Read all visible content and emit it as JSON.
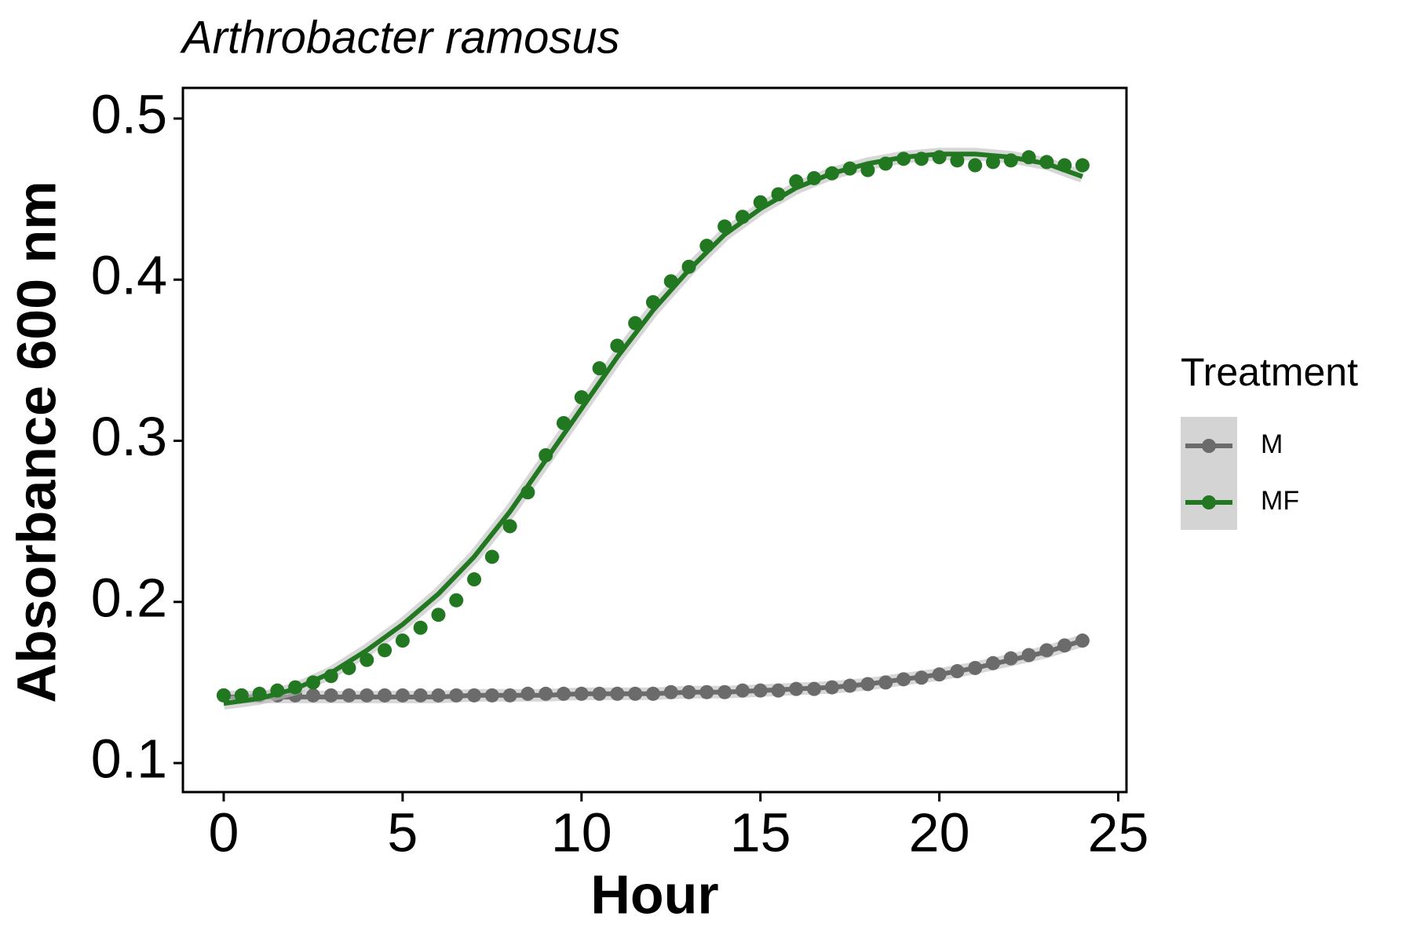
{
  "chart_data": {
    "type": "scatter",
    "title": "Arthrobacter ramosus",
    "x_label": "Hour",
    "y_label": "Absorbance 600 nm",
    "legend_title": "Treatment",
    "x": [
      0,
      0.5,
      1,
      1.5,
      2,
      2.5,
      3,
      3.5,
      4,
      4.5,
      5,
      5.5,
      6,
      6.5,
      7,
      7.5,
      8,
      8.5,
      9,
      9.5,
      10,
      10.5,
      11,
      11.5,
      12,
      12.5,
      13,
      13.5,
      14,
      14.5,
      15,
      15.5,
      16,
      16.5,
      17,
      17.5,
      18,
      18.5,
      19,
      19.5,
      20,
      20.5,
      21,
      21.5,
      22,
      22.5,
      23,
      23.5,
      24
    ],
    "fit_x": [
      0,
      1,
      2,
      3,
      4,
      5,
      6,
      7,
      8,
      9,
      10,
      11,
      12,
      13,
      14,
      15,
      16,
      17,
      18,
      19,
      20,
      21,
      22,
      23,
      24
    ],
    "series": [
      {
        "name": "M",
        "color": "#6b6b6b",
        "values": [
          0.142,
          0.142,
          0.142,
          0.142,
          0.142,
          0.142,
          0.142,
          0.142,
          0.142,
          0.142,
          0.142,
          0.142,
          0.142,
          0.142,
          0.142,
          0.142,
          0.142,
          0.143,
          0.143,
          0.143,
          0.143,
          0.143,
          0.143,
          0.143,
          0.143,
          0.144,
          0.144,
          0.144,
          0.144,
          0.145,
          0.145,
          0.145,
          0.146,
          0.146,
          0.147,
          0.148,
          0.149,
          0.15,
          0.152,
          0.153,
          0.155,
          0.157,
          0.159,
          0.162,
          0.165,
          0.167,
          0.17,
          0.173,
          0.176
        ],
        "fit": [
          0.141,
          0.141,
          0.141,
          0.141,
          0.141,
          0.141,
          0.141,
          0.142,
          0.142,
          0.142,
          0.143,
          0.143,
          0.143,
          0.144,
          0.144,
          0.145,
          0.146,
          0.147,
          0.149,
          0.152,
          0.155,
          0.159,
          0.164,
          0.169,
          0.176
        ]
      },
      {
        "name": "MF",
        "color": "#217821",
        "values": [
          0.142,
          0.142,
          0.143,
          0.145,
          0.147,
          0.15,
          0.154,
          0.159,
          0.164,
          0.17,
          0.176,
          0.184,
          0.192,
          0.201,
          0.214,
          0.228,
          0.247,
          0.268,
          0.291,
          0.311,
          0.327,
          0.345,
          0.359,
          0.373,
          0.386,
          0.399,
          0.408,
          0.421,
          0.433,
          0.439,
          0.448,
          0.453,
          0.461,
          0.463,
          0.466,
          0.469,
          0.468,
          0.472,
          0.475,
          0.475,
          0.476,
          0.474,
          0.471,
          0.473,
          0.474,
          0.476,
          0.473,
          0.471,
          0.471
        ],
        "fit": [
          0.137,
          0.14,
          0.146,
          0.156,
          0.17,
          0.186,
          0.205,
          0.228,
          0.256,
          0.288,
          0.32,
          0.352,
          0.381,
          0.406,
          0.428,
          0.444,
          0.457,
          0.466,
          0.472,
          0.476,
          0.478,
          0.478,
          0.476,
          0.472,
          0.464
        ]
      }
    ],
    "xlim": [
      -1.14,
      25.23
    ],
    "ylim": [
      0.082,
      0.519
    ],
    "xticks": [
      0,
      5,
      10,
      15,
      20,
      25
    ],
    "yticks": [
      0.1,
      0.2,
      0.3,
      0.4,
      0.5
    ],
    "grid": false
  }
}
